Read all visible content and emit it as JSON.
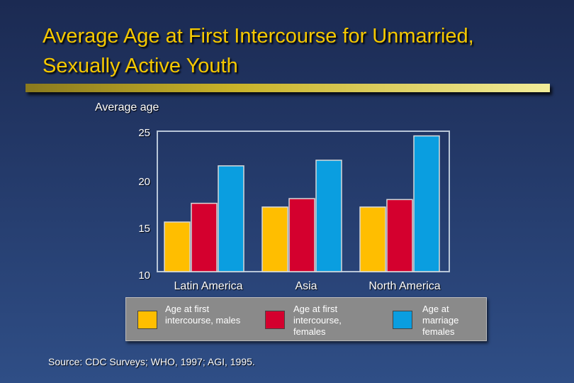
{
  "slide": {
    "title": "Average Age at First Intercourse for Unmarried, Sexually Active Youth",
    "source": "Source:  CDC Surveys; WHO, 1997; AGI, 1995."
  },
  "colors": {
    "title": "#f5c800",
    "males": "#ffbe00",
    "females_intercourse": "#d4002e",
    "females_marriage": "#0a9ee0",
    "plot_border": "#b8c6d8"
  },
  "chart_data": {
    "type": "bar",
    "title": "Average Age at First Intercourse for Unmarried, Sexually Active Youth",
    "ylabel": "Average age",
    "xlabel": "",
    "ylim": [
      10,
      25
    ],
    "yticks": [
      "25",
      "20",
      "15",
      "10"
    ],
    "categories": [
      "Latin America",
      "Asia",
      "North America"
    ],
    "series": [
      {
        "name": "Age at first intercourse, males",
        "values": [
          15.3,
          16.9,
          16.9
        ]
      },
      {
        "name": "Age at first intercourse, females",
        "values": [
          17.3,
          17.8,
          17.7
        ]
      },
      {
        "name": "Age at marriage females",
        "values": [
          21.3,
          21.9,
          24.5
        ]
      }
    ]
  },
  "legend": [
    {
      "label": "Age at first intercourse, males"
    },
    {
      "label": "Age at first intercourse, females"
    },
    {
      "label": "Age at marriage females"
    }
  ]
}
